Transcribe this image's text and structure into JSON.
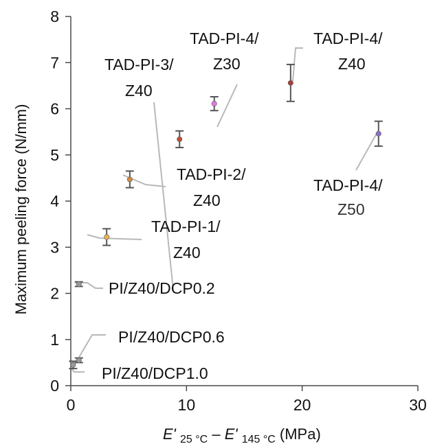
{
  "chart_data": {
    "type": "scatter",
    "title": "",
    "ylabel": "Maximum peeling force (N/mm)",
    "xlabel": {
      "main": "E'",
      "sub1": "25 °C",
      "minus": " – ",
      "sub2": "145 °C",
      "unit": "(MPa)"
    },
    "xlim": [
      0,
      30
    ],
    "ylim": [
      0,
      8
    ],
    "xticks": [
      "0",
      "10",
      "20",
      "30"
    ],
    "yticks": [
      "0",
      "1",
      "2",
      "3",
      "4",
      "5",
      "6",
      "7",
      "8"
    ],
    "grid": false,
    "legend": "none",
    "points": [
      {
        "id": "pi-z40-dcp1-0",
        "label": [
          "PI/Z40/DCP1.0"
        ],
        "x": 0.2,
        "y": 0.45,
        "err": 0.08,
        "color": "#9a9a9a"
      },
      {
        "id": "pi-z40-dcp0-6",
        "label": [
          "PI/Z40/DCP0.6"
        ],
        "x": 0.7,
        "y": 0.55,
        "err": 0.05,
        "color": "#9a9a9a"
      },
      {
        "id": "pi-z40-dcp0-2",
        "label": [
          "PI/Z40/DCP0.2"
        ],
        "x": 0.7,
        "y": 2.2,
        "err": 0.05,
        "color": "#9a9a9a"
      },
      {
        "id": "tad-pi-1-z40",
        "label": [
          "TAD-PI-1/",
          "Z40"
        ],
        "x": 3.1,
        "y": 3.22,
        "err": 0.18,
        "color": "#f3b64a"
      },
      {
        "id": "tad-pi-2-z40",
        "label": [
          "TAD-PI-2/",
          "Z40"
        ],
        "x": 5.1,
        "y": 4.47,
        "err": 0.18,
        "color": "#d98d3b"
      },
      {
        "id": "tad-pi-3-z40",
        "label": [
          "TAD-PI-3/",
          "Z40"
        ],
        "x": 9.4,
        "y": 5.34,
        "err": 0.18,
        "color": "#c24d33"
      },
      {
        "id": "tad-pi-4-z30",
        "label": [
          "TAD-PI-4/",
          "Z30"
        ],
        "x": 12.4,
        "y": 6.11,
        "err": 0.15,
        "color": "#e079e6"
      },
      {
        "id": "tad-pi-4-z40",
        "label": [
          "TAD-PI-4/",
          "Z40"
        ],
        "x": 19.0,
        "y": 6.56,
        "err": 0.4,
        "color": "#b13a2f"
      },
      {
        "id": "tad-pi-4-z50",
        "label": [
          "TAD-PI-4/",
          "Z50"
        ],
        "x": 26.6,
        "y": 5.46,
        "err": 0.27,
        "color": "#8c6fd6"
      }
    ]
  }
}
